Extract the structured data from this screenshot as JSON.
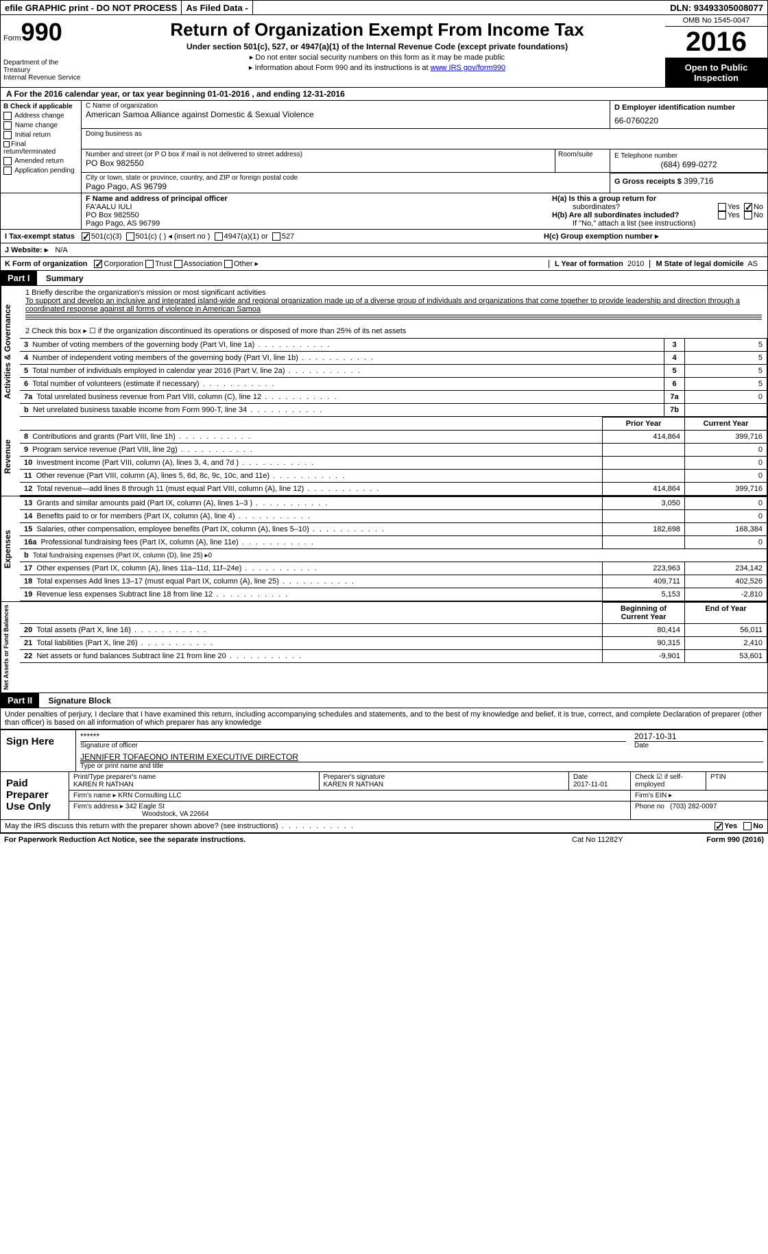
{
  "topbar": {
    "efile": "efile GRAPHIC print - DO NOT PROCESS",
    "asfiled": "As Filed Data -",
    "dln_label": "DLN:",
    "dln": "93493305008077"
  },
  "header": {
    "form_prefix": "Form",
    "form_number": "990",
    "dept1": "Department of the Treasury",
    "dept2": "Internal Revenue Service",
    "title": "Return of Organization Exempt From Income Tax",
    "subtitle": "Under section 501(c), 527, or 4947(a)(1) of the Internal Revenue Code (except private foundations)",
    "bullet1": "▸ Do not enter social security numbers on this form as it may be made public",
    "bullet2_pre": "▸ Information about Form 990 and its instructions is at ",
    "bullet2_link": "www IRS gov/form990",
    "omb": "OMB No 1545-0047",
    "year": "2016",
    "open_public1": "Open to Public",
    "open_public2": "Inspection"
  },
  "row_a": "A   For the 2016 calendar year, or tax year beginning 01-01-2016   , and ending 12-31-2016",
  "col_b": {
    "title": "B Check if applicable",
    "items": [
      "Address change",
      "Name change",
      "Initial return",
      "Final return/terminated",
      "Amended return",
      "Application pending"
    ]
  },
  "col_c": {
    "label_name": "C Name of organization",
    "name": "American Samoa Alliance against Domestic & Sexual Violence",
    "dba_label": "Doing business as",
    "street_label": "Number and street (or P O  box if mail is not delivered to street address)",
    "room_label": "Room/suite",
    "street": "PO Box 982550",
    "city_label": "City or town, state or province, country, and ZIP or foreign postal code",
    "city": "Pago Pago, AS  96799"
  },
  "col_d": {
    "label": "D Employer identification number",
    "value": "66-0760220",
    "e_label": "E Telephone number",
    "e_value": "(684) 699-0272",
    "g_label": "G Gross receipts $",
    "g_value": "399,716"
  },
  "row_f": {
    "label": "F  Name and address of principal officer",
    "name": "FA'AALU IULI",
    "addr1": "PO Box 982550",
    "addr2": "Pago Pago, AS  96799"
  },
  "row_h": {
    "ha": "H(a)  Is this a group return for",
    "ha2": "subordinates?",
    "hb": "H(b)  Are all subordinates included?",
    "hb2": "If \"No,\" attach a list  (see instructions)",
    "hc": "H(c)  Group exemption number ▸",
    "yes": "Yes",
    "no": "No"
  },
  "row_i": {
    "label": "I   Tax-exempt status",
    "o1": "501(c)(3)",
    "o2": "501(c) (   ) ◂ (insert no )",
    "o3": "4947(a)(1) or",
    "o4": "527"
  },
  "row_j": {
    "label": "J   Website: ▸",
    "value": "N/A"
  },
  "row_k": {
    "label": "K Form of organization",
    "o1": "Corporation",
    "o2": "Trust",
    "o3": "Association",
    "o4": "Other ▸"
  },
  "row_l": {
    "label": "L Year of formation",
    "value": "2010"
  },
  "row_m": {
    "label": "M State of legal domicile",
    "value": "AS"
  },
  "part1": {
    "num": "Part I",
    "title": "Summary"
  },
  "summary": {
    "q1_label": "1  Briefly describe the organization's mission or most significant activities",
    "q1_text": "To support and develop an inclusive and integrated island-wide and regional organization made up of a diverse group of individuals and organizations that come together to provide leadership and direction through a coordinated response against all forms of violence in American Samoa",
    "q2": "2   Check this box ▸ ☐ if the organization discontinued its operations or disposed of more than 25% of its net assets",
    "governance_label": "Activities & Governance",
    "revenue_label": "Revenue",
    "expenses_label": "Expenses",
    "netassets_label": "Net Assets or Fund Balances",
    "lines_gov": [
      {
        "n": "3",
        "t": "Number of voting members of the governing body (Part VI, line 1a)",
        "box": "3",
        "v": "5"
      },
      {
        "n": "4",
        "t": "Number of independent voting members of the governing body (Part VI, line 1b)",
        "box": "4",
        "v": "5"
      },
      {
        "n": "5",
        "t": "Total number of individuals employed in calendar year 2016 (Part V, line 2a)",
        "box": "5",
        "v": "5"
      },
      {
        "n": "6",
        "t": "Total number of volunteers (estimate if necessary)",
        "box": "6",
        "v": "5"
      },
      {
        "n": "7a",
        "t": "Total unrelated business revenue from Part VIII, column (C), line 12",
        "box": "7a",
        "v": "0"
      },
      {
        "n": "b",
        "t": "Net unrelated business taxable income from Form 990-T, line 34",
        "box": "7b",
        "v": ""
      }
    ],
    "col_headers": {
      "prior": "Prior Year",
      "current": "Current Year",
      "boy": "Beginning of Current Year",
      "eoy": "End of Year"
    },
    "lines_rev": [
      {
        "n": "8",
        "t": "Contributions and grants (Part VIII, line 1h)",
        "p": "414,864",
        "c": "399,716"
      },
      {
        "n": "9",
        "t": "Program service revenue (Part VIII, line 2g)",
        "p": "",
        "c": "0"
      },
      {
        "n": "10",
        "t": "Investment income (Part VIII, column (A), lines 3, 4, and 7d )",
        "p": "",
        "c": "0"
      },
      {
        "n": "11",
        "t": "Other revenue (Part VIII, column (A), lines 5, 6d, 8c, 9c, 10c, and 11e)",
        "p": "",
        "c": "0"
      },
      {
        "n": "12",
        "t": "Total revenue—add lines 8 through 11 (must equal Part VIII, column (A), line 12)",
        "p": "414,864",
        "c": "399,716"
      }
    ],
    "lines_exp": [
      {
        "n": "13",
        "t": "Grants and similar amounts paid (Part IX, column (A), lines 1–3 )",
        "p": "3,050",
        "c": "0"
      },
      {
        "n": "14",
        "t": "Benefits paid to or for members (Part IX, column (A), line 4)",
        "p": "",
        "c": "0"
      },
      {
        "n": "15",
        "t": "Salaries, other compensation, employee benefits (Part IX, column (A), lines 5–10)",
        "p": "182,698",
        "c": "168,384"
      },
      {
        "n": "16a",
        "t": "Professional fundraising fees (Part IX, column (A), line 11e)",
        "p": "",
        "c": "0"
      },
      {
        "n": "b",
        "t": "Total fundraising expenses (Part IX, column (D), line 25) ▸0",
        "p": "—",
        "c": "—"
      },
      {
        "n": "17",
        "t": "Other expenses (Part IX, column (A), lines 11a–11d, 11f–24e)",
        "p": "223,963",
        "c": "234,142"
      },
      {
        "n": "18",
        "t": "Total expenses  Add lines 13–17 (must equal Part IX, column (A), line 25)",
        "p": "409,711",
        "c": "402,526"
      },
      {
        "n": "19",
        "t": "Revenue less expenses  Subtract line 18 from line 12",
        "p": "5,153",
        "c": "-2,810"
      }
    ],
    "lines_net": [
      {
        "n": "20",
        "t": "Total assets (Part X, line 16)",
        "p": "80,414",
        "c": "56,011"
      },
      {
        "n": "21",
        "t": "Total liabilities (Part X, line 26)",
        "p": "90,315",
        "c": "2,410"
      },
      {
        "n": "22",
        "t": "Net assets or fund balances  Subtract line 21 from line 20",
        "p": "-9,901",
        "c": "53,601"
      }
    ]
  },
  "part2": {
    "num": "Part II",
    "title": "Signature Block"
  },
  "perjury": "Under penalties of perjury, I declare that I have examined this return, including accompanying schedules and statements, and to the best of my knowledge and belief, it is true, correct, and complete  Declaration of preparer (other than officer) is based on all information of which preparer has any knowledge",
  "sign": {
    "here": "Sign Here",
    "stars": "******",
    "sig_officer": "Signature of officer",
    "date": "2017-10-31",
    "date_label": "Date",
    "officer_name": "JENNIFER TOFAEONO  INTERIM EXECUTIVE DIRECTOR",
    "type_label": "Type or print name and title"
  },
  "preparer": {
    "label": "Paid Preparer Use Only",
    "name_label": "Print/Type preparer's name",
    "name": "KAREN R NATHAN",
    "sig_label": "Preparer's signature",
    "sig": "KAREN R NATHAN",
    "date_label": "Date",
    "date": "2017-11-01",
    "check_label": "Check ☑ if self-employed",
    "ptin_label": "PTIN",
    "firm_name_label": "Firm's name    ▸",
    "firm_name": "KRN Consulting LLC",
    "firm_ein_label": "Firm's EIN ▸",
    "firm_addr_label": "Firm's address ▸",
    "firm_addr1": "342 Eagle St",
    "firm_addr2": "Woodstock, VA  22664",
    "phone_label": "Phone no",
    "phone": "(703) 282-0097"
  },
  "footer": {
    "discuss": "May the IRS discuss this return with the preparer shown above? (see instructions)",
    "yes": "Yes",
    "no": "No",
    "paperwork": "For Paperwork Reduction Act Notice, see the separate instructions.",
    "catno": "Cat No  11282Y",
    "formno": "Form 990 (2016)"
  }
}
